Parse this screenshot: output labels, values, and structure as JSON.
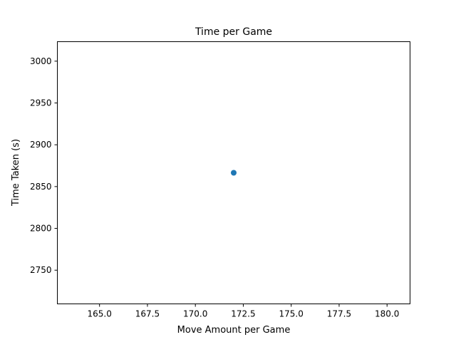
{
  "chart_data": {
    "type": "scatter",
    "title": "Time per Game",
    "xlabel": "Move Amount per Game",
    "ylabel": "Time Taken (s)",
    "xlim": [
      162.8,
      181.2
    ],
    "ylim": [
      2709.7,
      3023.3
    ],
    "x_ticks": [
      "165.0",
      "167.5",
      "170.0",
      "172.5",
      "175.0",
      "177.5",
      "180.0"
    ],
    "y_ticks": [
      "2750",
      "2800",
      "2850",
      "2900",
      "2950",
      "3000"
    ],
    "series": [
      {
        "points": [
          {
            "x": 172.0,
            "y": 2866.5
          }
        ]
      }
    ],
    "grid": false,
    "legend": "none",
    "marker_color": "#1f77b4"
  }
}
